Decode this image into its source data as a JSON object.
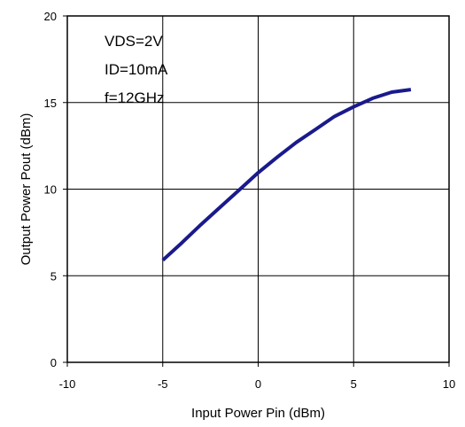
{
  "chart_data": {
    "type": "line",
    "title": "",
    "xlabel": "Input Power  Pin (dBm)",
    "ylabel": "Output Power  Pout (dBm)",
    "xlim": [
      -10,
      10
    ],
    "ylim": [
      0,
      20
    ],
    "xticks": [
      -10,
      -5,
      0,
      5,
      10
    ],
    "yticks": [
      0,
      5,
      10,
      15,
      20
    ],
    "grid": true,
    "annotations": [
      "VDS=2V",
      "ID=10mA",
      "f=12GHz"
    ],
    "series": [
      {
        "color": "#1a1a8c",
        "x": [
          -5,
          -4,
          -3,
          -2,
          -1,
          0,
          1,
          2,
          3,
          4,
          5,
          6,
          7,
          8
        ],
        "y": [
          5.9,
          6.9,
          7.95,
          8.95,
          9.95,
          10.95,
          11.85,
          12.7,
          13.45,
          14.2,
          14.75,
          15.25,
          15.6,
          15.75
        ]
      }
    ]
  }
}
